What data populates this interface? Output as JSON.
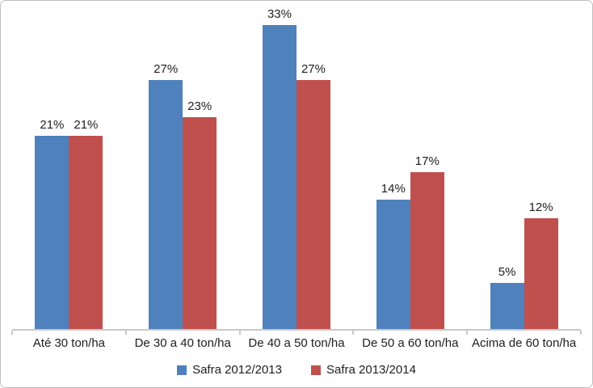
{
  "chart_data": {
    "type": "bar",
    "title": "",
    "categories": [
      "Até 30 ton/ha",
      "De 30 a 40 ton/ha",
      "De 40 a 50 ton/ha",
      "De 50 a 60 ton/ha",
      "Acima de 60 ton/ha"
    ],
    "series": [
      {
        "name": "Safra 2012/2013",
        "color": "#4f81bd",
        "values": [
          21,
          27,
          33,
          14,
          5
        ]
      },
      {
        "name": "Safra 2013/2014",
        "color": "#c0504d",
        "values": [
          21,
          23,
          27,
          17,
          12
        ]
      }
    ],
    "value_suffix": "%",
    "data_labels": true,
    "ylim": [
      0,
      35
    ],
    "grid": false,
    "legend_position": "bottom"
  },
  "colors": {
    "axis": "#c8c8c8",
    "text": "#202020",
    "background": "#ffffff",
    "border": "#bfbfbf"
  }
}
